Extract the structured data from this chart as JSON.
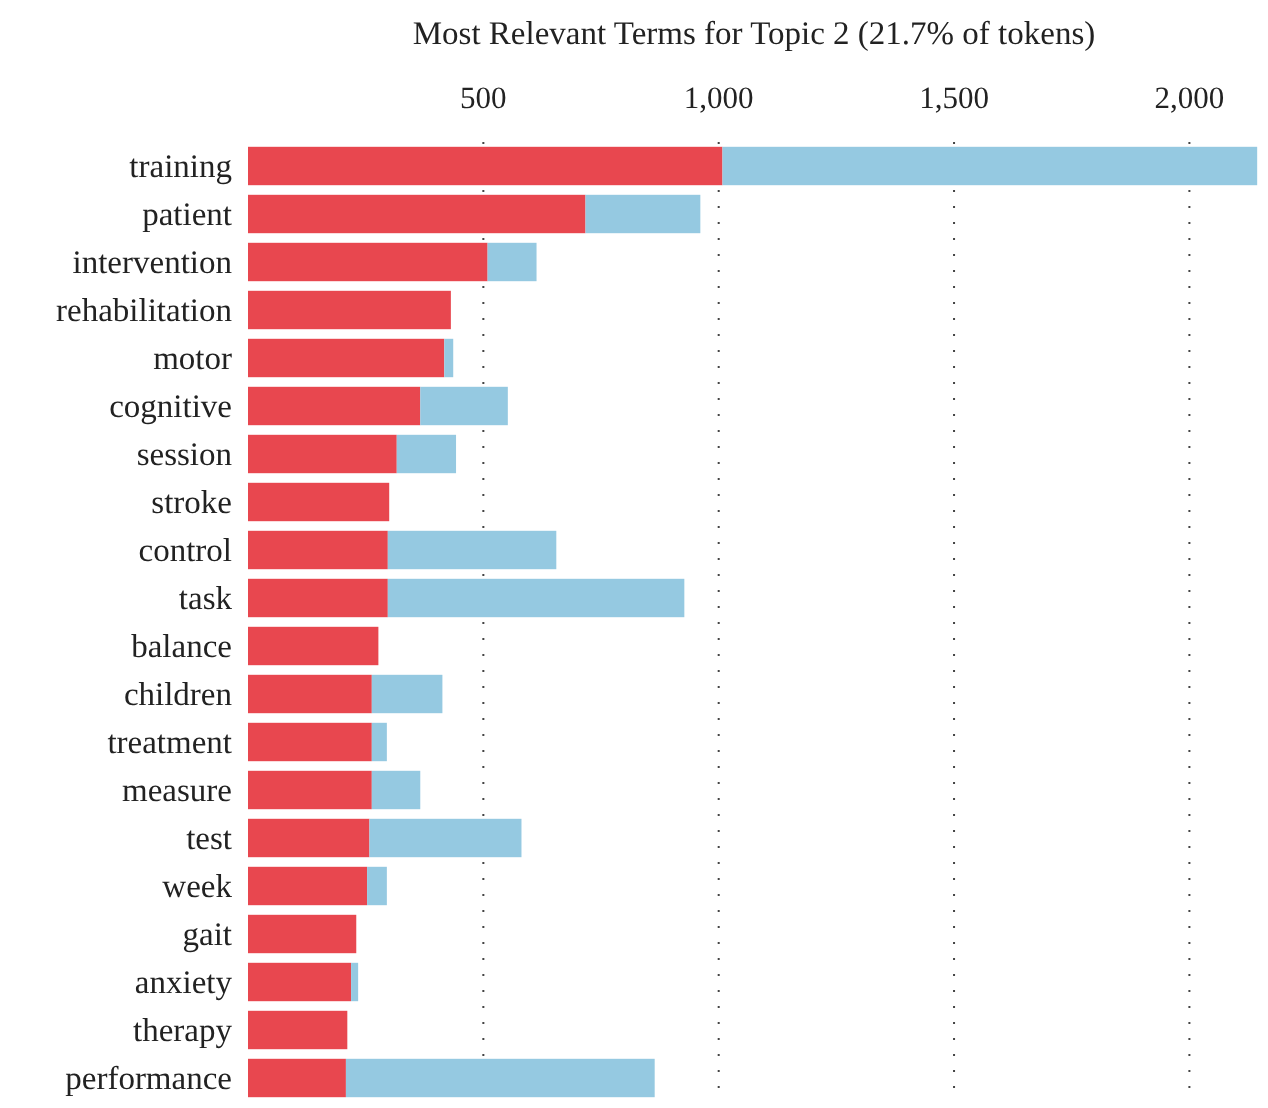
{
  "chart_data": {
    "type": "bar",
    "orientation": "horizontal",
    "stacked": true,
    "title": "Most Relevant Terms for Topic 2 (21.7% of tokens)",
    "categories": [
      "training",
      "patient",
      "intervention",
      "rehabilitation",
      "motor",
      "cognitive",
      "session",
      "stroke",
      "control",
      "task",
      "balance",
      "children",
      "treatment",
      "measure",
      "test",
      "week",
      "gait",
      "anxiety",
      "therapy",
      "performance"
    ],
    "series": [
      {
        "color": "#e8474f",
        "values": [
          1008,
          717,
          509,
          431,
          417,
          366,
          316,
          300,
          297,
          297,
          277,
          263,
          263,
          263,
          258,
          253,
          230,
          219,
          211,
          208
        ]
      },
      {
        "color": "#95c9e1",
        "values": [
          1136,
          244,
          104,
          null,
          19,
          186,
          126,
          null,
          358,
          630,
          null,
          150,
          32,
          103,
          323,
          42,
          null,
          15,
          null,
          656
        ]
      }
    ],
    "xlim": [
      0,
      2150
    ],
    "xticks": [
      500,
      {
        "value": 1000,
        "label": "1,000"
      },
      {
        "value": 1500,
        "label": "1,500"
      },
      {
        "value": 2000,
        "label": "2,000"
      }
    ],
    "grid": "x"
  }
}
